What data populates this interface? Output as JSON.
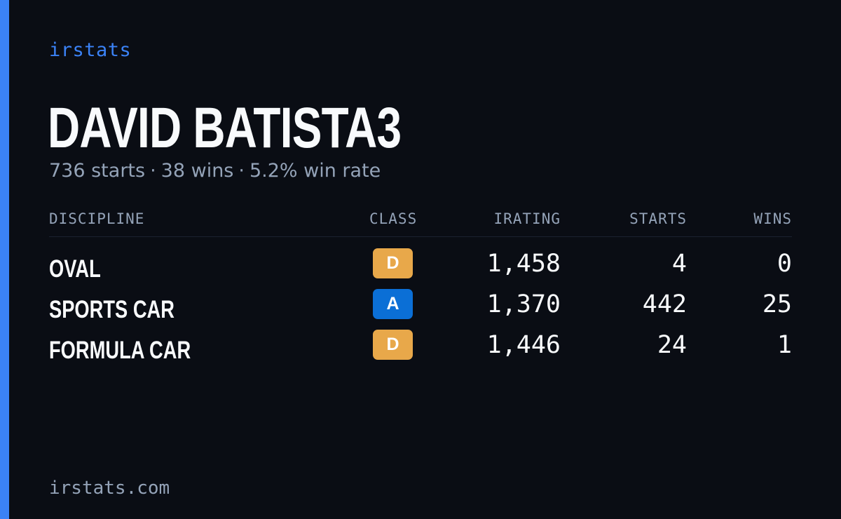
{
  "brand": "irstats",
  "player": {
    "name": "DAVID BATISTA3",
    "starts": "736 starts",
    "wins": "38 wins",
    "win_rate": "5.2% win rate",
    "separator": "·"
  },
  "table": {
    "headers": {
      "discipline": "DISCIPLINE",
      "class": "CLASS",
      "irating": "IRATING",
      "starts": "STARTS",
      "wins": "WINS"
    },
    "rows": [
      {
        "discipline": "OVAL",
        "class": "D",
        "class_color": "#e8a84a",
        "irating": "1,458",
        "starts": "4",
        "wins": "0"
      },
      {
        "discipline": "SPORTS CAR",
        "class": "A",
        "class_color": "#0b6fd6",
        "irating": "1,370",
        "starts": "442",
        "wins": "25"
      },
      {
        "discipline": "FORMULA CAR",
        "class": "D",
        "class_color": "#e8a84a",
        "irating": "1,446",
        "starts": "24",
        "wins": "1"
      }
    ]
  },
  "footer": "irstats.com",
  "colors": {
    "accent": "#3b82f6",
    "background": "#0a0d14",
    "muted_text": "#94a3b8",
    "primary_text": "#f8fafc"
  }
}
